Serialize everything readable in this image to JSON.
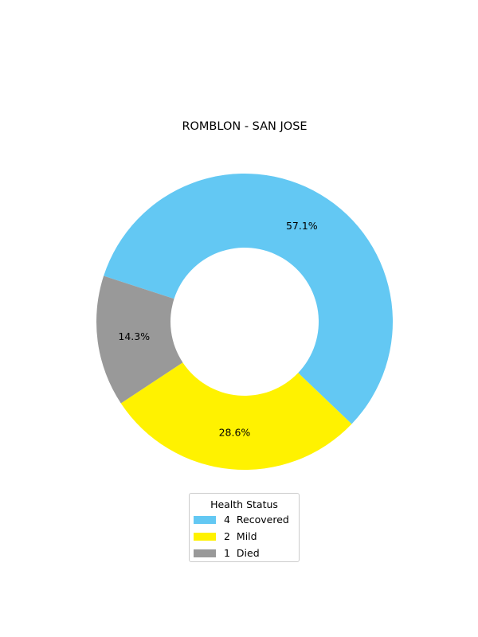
{
  "chart_data": {
    "type": "pie",
    "donut": true,
    "title": "ROMBLON - SAN JOSE",
    "start_angle_deg": 162,
    "direction": "clockwise",
    "slices": [
      {
        "label": "Recovered",
        "count": "4",
        "value": 4,
        "pct_label": "57.1%",
        "color": "#63c8f3"
      },
      {
        "label": "Mild",
        "count": "2",
        "value": 2,
        "pct_label": "28.6%",
        "color": "#fff200"
      },
      {
        "label": "Died",
        "count": "1",
        "value": 1,
        "pct_label": "14.3%",
        "color": "#999999"
      }
    ],
    "legend": {
      "title": "Health Status",
      "placement": "bottom-center",
      "items": [
        {
          "count": "4",
          "label": "Recovered",
          "color": "#63c8f3"
        },
        {
          "count": "2",
          "label": "Mild",
          "color": "#fff200"
        },
        {
          "count": "1",
          "label": "Died",
          "color": "#999999"
        }
      ]
    }
  }
}
